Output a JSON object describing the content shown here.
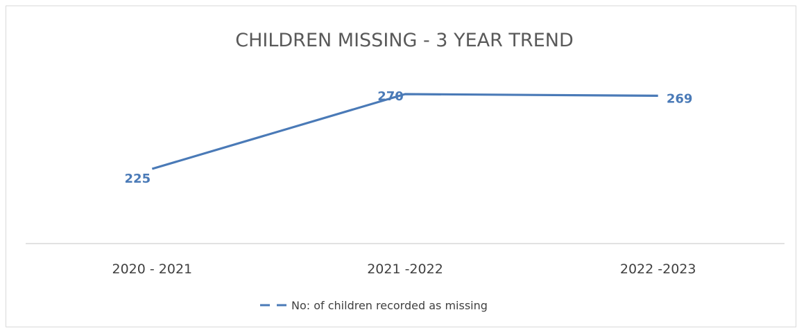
{
  "chart_data": {
    "type": "line",
    "title": "CHILDREN MISSING - 3 YEAR TREND",
    "xlabel": "",
    "ylabel": "",
    "categories": [
      "2020 - 2021",
      "2021 -2022",
      "2022 -2023"
    ],
    "series": [
      {
        "name": "No: of children recorded as missing",
        "values": [
          225,
          270,
          269
        ],
        "color": "#4a7ab7",
        "line_style": "solid"
      }
    ],
    "data_labels": [
      "225",
      "270",
      "269"
    ],
    "grid": false,
    "legend_position": "bottom",
    "ylim": [
      180,
      285
    ]
  }
}
